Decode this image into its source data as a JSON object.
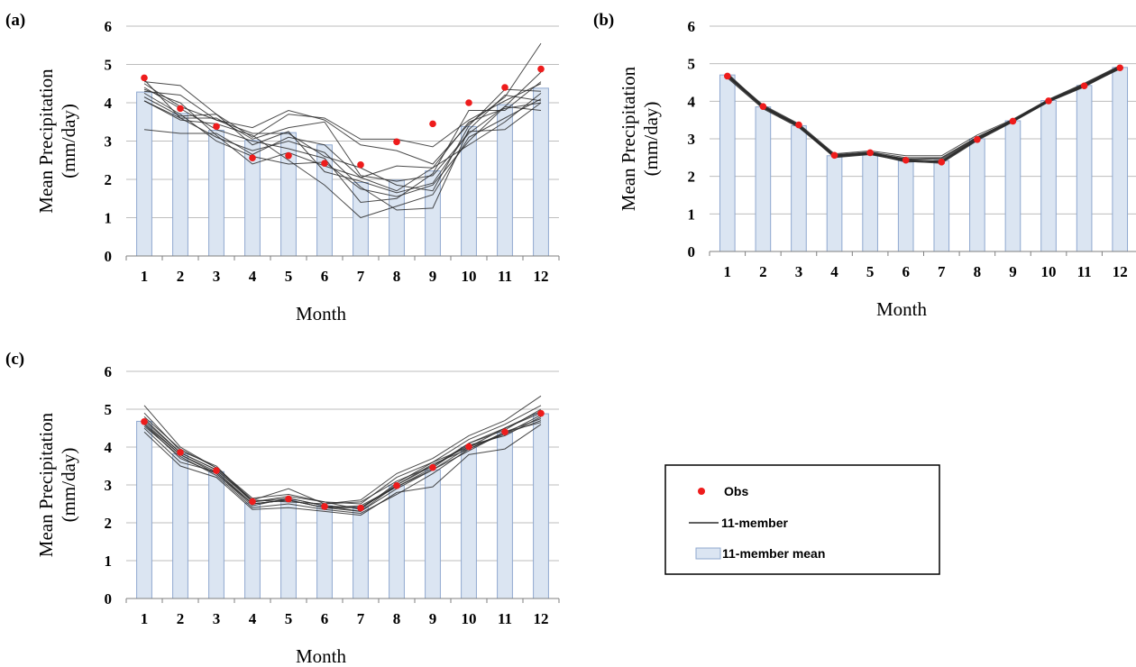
{
  "chart_data": [
    {
      "type": "bar",
      "panel_label": "(a)",
      "categories": [
        "1",
        "2",
        "3",
        "4",
        "5",
        "6",
        "7",
        "8",
        "9",
        "10",
        "11",
        "12"
      ],
      "xlabel": "Month",
      "ylabel_line1": "Mean Precipitation",
      "ylabel_line2": "(mm/day)",
      "ylim": [
        0,
        6
      ],
      "yticks": [
        "0",
        "1",
        "2",
        "3",
        "4",
        "5",
        "6"
      ],
      "grid": true,
      "series": [
        {
          "name": "11-member mean",
          "type": "bar",
          "values": [
            4.28,
            3.72,
            3.28,
            3.02,
            3.22,
            2.9,
            1.92,
            1.98,
            2.22,
            3.38,
            3.95,
            4.38
          ]
        },
        {
          "name": "Obs",
          "type": "scatter",
          "values": [
            4.65,
            3.85,
            3.38,
            2.56,
            2.62,
            2.42,
            2.38,
            2.98,
            3.45,
            4.0,
            4.4,
            4.88
          ]
        },
        {
          "name": "11-member",
          "type": "line",
          "members": [
            [
              4.55,
              4.45,
              3.7,
              3.1,
              3.7,
              3.6,
              3.05,
              3.05,
              2.85,
              3.55,
              4.05,
              4.5
            ],
            [
              4.3,
              4.2,
              3.55,
              3.35,
              3.8,
              3.55,
              2.9,
              2.75,
              2.4,
              3.45,
              4.15,
              5.55
            ],
            [
              4.05,
              3.6,
              3.6,
              3.05,
              3.35,
              3.5,
              2.1,
              1.95,
              2.1,
              3.2,
              3.9,
              4.8
            ],
            [
              3.3,
              3.2,
              3.2,
              2.65,
              3.1,
              2.9,
              2.05,
              2.35,
              2.3,
              3.5,
              3.85,
              4.0
            ],
            [
              4.5,
              3.9,
              3.55,
              3.2,
              3.2,
              2.6,
              2.3,
              1.85,
              1.7,
              3.4,
              4.35,
              4.3
            ],
            [
              4.4,
              3.85,
              3.3,
              3.0,
              2.8,
              2.55,
              1.4,
              1.5,
              2.15,
              3.8,
              3.8,
              4.55
            ],
            [
              4.05,
              3.55,
              3.45,
              3.15,
              2.5,
              1.85,
              1.0,
              1.3,
              1.6,
              3.1,
              3.6,
              4.1
            ],
            [
              4.25,
              3.7,
              3.0,
              2.6,
              2.4,
              2.45,
              1.75,
              1.55,
              1.85,
              3.0,
              3.9,
              3.8
            ],
            [
              4.6,
              3.6,
              3.1,
              2.75,
              3.0,
              2.7,
              1.8,
              1.2,
              1.25,
              3.3,
              4.2,
              4.05
            ],
            [
              4.35,
              4.0,
              3.15,
              2.4,
              2.7,
              2.35,
              2.05,
              1.7,
              2.3,
              2.9,
              3.5,
              4.25
            ],
            [
              4.15,
              3.65,
              3.7,
              2.9,
              3.25,
              2.2,
              1.95,
              1.65,
              1.9,
              3.25,
              3.3,
              4.0
            ]
          ]
        }
      ]
    },
    {
      "type": "bar",
      "panel_label": "(b)",
      "categories": [
        "1",
        "2",
        "3",
        "4",
        "5",
        "6",
        "7",
        "8",
        "9",
        "10",
        "11",
        "12"
      ],
      "xlabel": "Month",
      "ylabel_line1": "Mean Precipitation",
      "ylabel_line2": "(mm/day)",
      "ylim": [
        0,
        6
      ],
      "yticks": [
        "0",
        "1",
        "2",
        "3",
        "4",
        "5",
        "6"
      ],
      "grid": true,
      "series": [
        {
          "name": "11-member mean",
          "type": "bar",
          "values": [
            4.7,
            3.85,
            3.35,
            2.55,
            2.62,
            2.42,
            2.42,
            3.0,
            3.48,
            4.02,
            4.42,
            4.9
          ]
        },
        {
          "name": "Obs",
          "type": "scatter",
          "values": [
            4.67,
            3.86,
            3.37,
            2.56,
            2.63,
            2.43,
            2.38,
            2.98,
            3.47,
            4.01,
            4.41,
            4.89
          ]
        },
        {
          "name": "11-member",
          "type": "line",
          "members": [
            [
              4.7,
              3.85,
              3.35,
              2.53,
              2.6,
              2.45,
              2.4,
              3.0,
              3.48,
              4.0,
              4.42,
              4.9
            ],
            [
              4.68,
              3.88,
              3.38,
              2.58,
              2.65,
              2.5,
              2.5,
              3.05,
              3.5,
              4.02,
              4.45,
              4.92
            ],
            [
              4.65,
              3.82,
              3.32,
              2.5,
              2.58,
              2.4,
              2.35,
              2.95,
              3.45,
              3.98,
              4.38,
              4.88
            ],
            [
              4.72,
              3.9,
              3.4,
              2.6,
              2.68,
              2.55,
              2.55,
              3.1,
              3.52,
              4.05,
              4.48,
              4.95
            ],
            [
              4.62,
              3.8,
              3.3,
              2.52,
              2.62,
              2.42,
              2.38,
              2.98,
              3.46,
              4.0,
              4.4,
              4.86
            ],
            [
              4.75,
              3.86,
              3.36,
              2.55,
              2.6,
              2.38,
              2.42,
              3.02,
              3.49,
              4.03,
              4.43,
              4.91
            ],
            [
              4.66,
              3.84,
              3.34,
              2.54,
              2.64,
              2.44,
              2.36,
              2.97,
              3.47,
              4.01,
              4.41,
              4.89
            ],
            [
              4.7,
              3.87,
              3.37,
              2.57,
              2.61,
              2.47,
              2.45,
              3.03,
              3.5,
              4.02,
              4.44,
              4.93
            ],
            [
              4.69,
              3.83,
              3.33,
              2.51,
              2.59,
              2.41,
              2.39,
              2.99,
              3.46,
              3.99,
              4.39,
              4.87
            ],
            [
              4.71,
              3.85,
              3.36,
              2.56,
              2.63,
              2.46,
              2.48,
              3.04,
              3.51,
              4.04,
              4.46,
              4.94
            ],
            [
              4.67,
              3.86,
              3.35,
              2.55,
              2.62,
              2.43,
              2.4,
              3.0,
              3.48,
              4.01,
              4.42,
              4.9
            ]
          ]
        }
      ]
    },
    {
      "type": "bar",
      "panel_label": "(c)",
      "categories": [
        "1",
        "2",
        "3",
        "4",
        "5",
        "6",
        "7",
        "8",
        "9",
        "10",
        "11",
        "12"
      ],
      "xlabel": "Month",
      "ylabel_line1": "Mean Precipitation",
      "ylabel_line2": "(mm/day)",
      "ylim": [
        0,
        6
      ],
      "yticks": [
        "0",
        "1",
        "2",
        "3",
        "4",
        "5",
        "6"
      ],
      "grid": true,
      "series": [
        {
          "name": "11-member mean",
          "type": "bar",
          "values": [
            4.68,
            3.82,
            3.35,
            2.52,
            2.6,
            2.45,
            2.42,
            2.98,
            3.4,
            4.0,
            4.38,
            4.88
          ]
        },
        {
          "name": "Obs",
          "type": "scatter",
          "values": [
            4.67,
            3.86,
            3.38,
            2.56,
            2.63,
            2.43,
            2.39,
            2.98,
            3.46,
            4.01,
            4.4,
            4.89
          ]
        },
        {
          "name": "11-member",
          "type": "line",
          "members": [
            [
              5.1,
              4.0,
              3.45,
              2.6,
              2.9,
              2.5,
              2.6,
              3.3,
              3.7,
              4.3,
              4.7,
              5.35
            ],
            [
              4.9,
              3.9,
              3.5,
              2.55,
              2.7,
              2.55,
              2.5,
              3.2,
              3.6,
              4.2,
              4.6,
              5.1
            ],
            [
              4.6,
              3.7,
              3.3,
              2.45,
              2.65,
              2.45,
              2.4,
              3.0,
              3.5,
              4.1,
              4.5,
              4.9
            ],
            [
              4.4,
              3.5,
              3.2,
              2.35,
              2.4,
              2.3,
              2.2,
              2.8,
              2.95,
              3.8,
              3.95,
              4.6
            ],
            [
              4.5,
              3.6,
              3.35,
              2.5,
              2.6,
              2.4,
              2.3,
              2.9,
              3.4,
              3.9,
              4.4,
              4.75
            ],
            [
              4.7,
              3.85,
              3.4,
              2.6,
              2.55,
              2.5,
              2.55,
              3.1,
              3.5,
              4.05,
              4.3,
              4.8
            ],
            [
              4.55,
              3.75,
              3.25,
              2.4,
              2.5,
              2.35,
              2.25,
              2.75,
              3.3,
              3.95,
              4.35,
              4.7
            ],
            [
              4.8,
              3.95,
              3.45,
              2.65,
              2.75,
              2.55,
              2.35,
              3.05,
              3.6,
              4.0,
              4.5,
              4.95
            ],
            [
              4.65,
              3.8,
              3.3,
              2.5,
              2.6,
              2.4,
              2.45,
              2.95,
              3.45,
              4.1,
              4.45,
              5.0
            ],
            [
              4.75,
              3.85,
              3.4,
              2.55,
              2.65,
              2.45,
              2.3,
              3.0,
              3.55,
              3.95,
              4.4,
              4.65
            ],
            [
              4.6,
              3.8,
              3.35,
              2.5,
              2.6,
              2.4,
              2.4,
              2.95,
              3.4,
              4.0,
              4.35,
              4.85
            ]
          ]
        }
      ]
    }
  ],
  "legend": {
    "entries": [
      {
        "name": "Obs",
        "marker": "red-dot"
      },
      {
        "name": "11-member",
        "marker": "black-line"
      },
      {
        "name": "11-member mean",
        "marker": "blue-bar"
      }
    ]
  },
  "colors": {
    "bar_fill": "#dbe5f2",
    "bar_stroke": "#8fa8cf",
    "member_line": "#2b2b2b",
    "obs_dot": "#ee1c1c",
    "grid": "#bdbdbd",
    "axis": "#7f7f7f"
  }
}
